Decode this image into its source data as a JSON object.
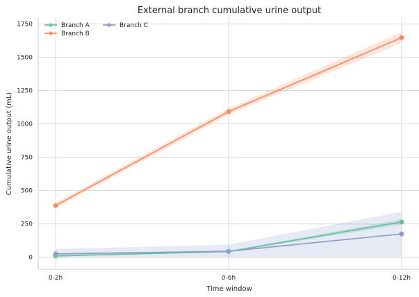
{
  "chart_data": {
    "type": "line",
    "title": "External branch cumulative urine output",
    "xlabel": "Time window",
    "ylabel": "Cumulative urine output (mL)",
    "categories": [
      "0-2h",
      "0-6h",
      "0-12h"
    ],
    "ylim": [
      -90,
      1800
    ],
    "yticks": [
      0,
      250,
      500,
      750,
      1000,
      1250,
      1500,
      1750
    ],
    "grid": true,
    "legend_position": "top-left",
    "series": [
      {
        "name": "Branch A",
        "color": "#66c2a5",
        "values": [
          10,
          43,
          265
        ],
        "band_lower": [
          5,
          38,
          245
        ],
        "band_upper": [
          15,
          48,
          285
        ]
      },
      {
        "name": "Branch B",
        "color": "#fc8d62",
        "values": [
          388,
          1093,
          1648
        ],
        "band_lower": [
          368,
          1070,
          1608
        ],
        "band_upper": [
          408,
          1116,
          1690
        ]
      },
      {
        "name": "Branch C",
        "color": "#8da0cb",
        "values": [
          25,
          45,
          175
        ],
        "band_lower": [
          0,
          0,
          0
        ],
        "band_upper": [
          62,
          95,
          342
        ]
      }
    ]
  }
}
